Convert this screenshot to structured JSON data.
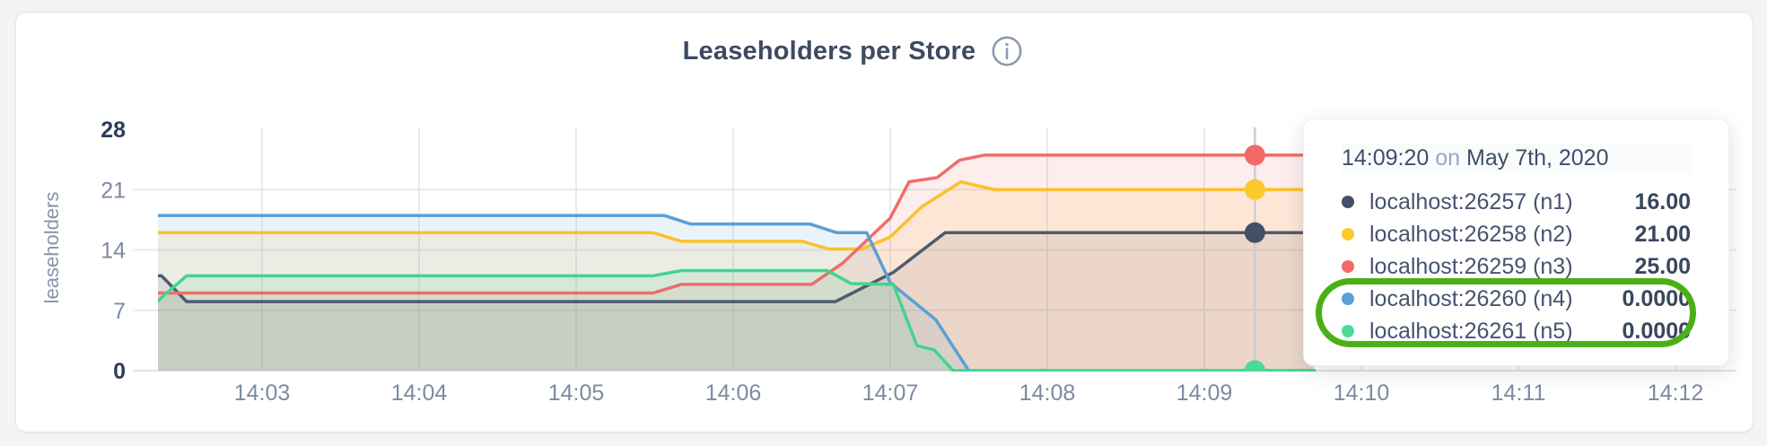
{
  "header": {
    "title": "Leaseholders per Store"
  },
  "chart_data": {
    "type": "area",
    "title": "Leaseholders per Store",
    "ylabel": "leaseholders",
    "xlabel": "",
    "ylim": [
      0,
      28
    ],
    "y_ticks": [
      0,
      7,
      14,
      21,
      28
    ],
    "x_ticks": [
      {
        "label": "14:03",
        "minute": 3
      },
      {
        "label": "14:04",
        "minute": 4
      },
      {
        "label": "14:05",
        "minute": 5
      },
      {
        "label": "14:06",
        "minute": 6
      },
      {
        "label": "14:07",
        "minute": 7
      },
      {
        "label": "14:08",
        "minute": 8
      },
      {
        "label": "14:09",
        "minute": 9
      },
      {
        "label": "14:10",
        "minute": 10
      },
      {
        "label": "14:11",
        "minute": 11
      },
      {
        "label": "14:12",
        "minute": 12
      }
    ],
    "grid": true,
    "legend_position": "tooltip",
    "theme": {
      "grid_color": "#e8eaee",
      "baseline_color": "#dfe3e6",
      "crosshair_color": "#c9ced4",
      "fill_opacity": 0.12
    },
    "crosshair": {
      "t_minute": 9.322,
      "time_label": "14:09:20"
    },
    "series": [
      {
        "name": "localhost:26257 (n1)",
        "color": "#4e5a70",
        "dot_color": "#42506a",
        "crosshair_value": 16,
        "points": [
          [
            2.33,
            11
          ],
          [
            2.36,
            11
          ],
          [
            2.52,
            8
          ],
          [
            6.65,
            8
          ],
          [
            7.02,
            11.4
          ],
          [
            7.35,
            16
          ],
          [
            9.7,
            16
          ]
        ]
      },
      {
        "name": "localhost:26258 (n2)",
        "color": "#fcc02c",
        "dot_color": "#fcc82d",
        "crosshair_value": 21,
        "points": [
          [
            2.33,
            16
          ],
          [
            5.49,
            16
          ],
          [
            5.67,
            15
          ],
          [
            6.44,
            15
          ],
          [
            6.61,
            14.1
          ],
          [
            6.82,
            14.1
          ],
          [
            7.0,
            15.5
          ],
          [
            7.2,
            19
          ],
          [
            7.45,
            21.9
          ],
          [
            7.66,
            21
          ],
          [
            9.7,
            21
          ]
        ]
      },
      {
        "name": "localhost:26259 (n3)",
        "color": "#ef6d69",
        "dot_color": "#f16a65",
        "crosshair_value": 25,
        "points": [
          [
            2.33,
            9
          ],
          [
            5.49,
            9
          ],
          [
            5.67,
            10
          ],
          [
            6.5,
            10
          ],
          [
            6.7,
            12.5
          ],
          [
            7.0,
            17.7
          ],
          [
            7.12,
            21.9
          ],
          [
            7.3,
            22.4
          ],
          [
            7.44,
            24.4
          ],
          [
            7.6,
            25
          ],
          [
            9.7,
            25
          ]
        ]
      },
      {
        "name": "localhost:26260 (n4)",
        "color": "#5b9fd4",
        "dot_color": "#5b9fd4",
        "crosshair_value": 0,
        "points": [
          [
            2.33,
            18
          ],
          [
            5.56,
            18
          ],
          [
            5.73,
            17
          ],
          [
            6.49,
            17
          ],
          [
            6.66,
            16
          ],
          [
            6.85,
            16
          ],
          [
            7.0,
            10.2
          ],
          [
            7.29,
            5.9
          ],
          [
            7.5,
            0
          ],
          [
            9.7,
            0
          ]
        ]
      },
      {
        "name": "localhost:26261 (n5)",
        "color": "#41d58d",
        "dot_color": "#4cdb97",
        "crosshair_value": 0,
        "points": [
          [
            2.33,
            8
          ],
          [
            2.52,
            11
          ],
          [
            5.49,
            11
          ],
          [
            5.67,
            11.6
          ],
          [
            6.6,
            11.6
          ],
          [
            6.75,
            10.1
          ],
          [
            7.02,
            10
          ],
          [
            7.17,
            2.9
          ],
          [
            7.28,
            2.4
          ],
          [
            7.4,
            0
          ],
          [
            9.7,
            0
          ]
        ]
      }
    ]
  },
  "tooltip": {
    "time": "14:09:20",
    "conjunction": "on",
    "date": "May 7th, 2020",
    "rows": [
      {
        "label": "localhost:26257 (n1)",
        "value": "16.00",
        "color": "#42506a"
      },
      {
        "label": "localhost:26258 (n2)",
        "value": "21.00",
        "color": "#fcc82d"
      },
      {
        "label": "localhost:26259 (n3)",
        "value": "25.00",
        "color": "#f16a65"
      },
      {
        "label": "localhost:26260 (n4)",
        "value": "0.0000",
        "color": "#5b9fd4"
      },
      {
        "label": "localhost:26261 (n5)",
        "value": "0.0000",
        "color": "#4cdb97"
      }
    ]
  },
  "annotation": {
    "shape": "ellipse",
    "color": "#4bb017",
    "highlights": [
      "localhost:26260 (n4)",
      "localhost:26261 (n5)"
    ]
  }
}
